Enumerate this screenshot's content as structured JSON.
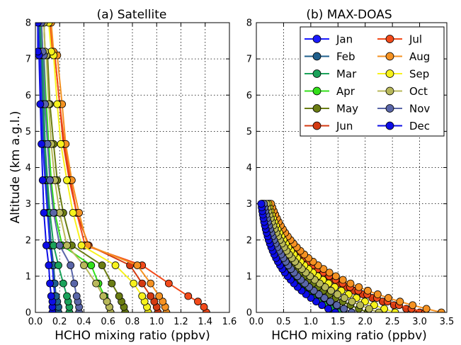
{
  "months": [
    {
      "name": "Jan",
      "color": "#1a1aff"
    },
    {
      "name": "Feb",
      "color": "#1f5f8c"
    },
    {
      "name": "Mar",
      "color": "#1aa35a"
    },
    {
      "name": "Apr",
      "color": "#33e01a"
    },
    {
      "name": "May",
      "color": "#6b7d13"
    },
    {
      "name": "Jun",
      "color": "#d43a12"
    },
    {
      "name": "Jul",
      "color": "#f24a1a"
    },
    {
      "name": "Aug",
      "color": "#f59222"
    },
    {
      "name": "Sep",
      "color": "#f7f21c"
    },
    {
      "name": "Oct",
      "color": "#b8b85a"
    },
    {
      "name": "Nov",
      "color": "#5a66a8"
    },
    {
      "name": "Dec",
      "color": "#0d0de6"
    }
  ],
  "chart_data": [
    {
      "type": "line",
      "title": "(a) Satellite",
      "xlabel": "HCHO mixing ratio (ppbv)",
      "ylabel": "Altitude (km a.g.l.)",
      "xlim": [
        0,
        1.6
      ],
      "ylim": [
        0,
        8
      ],
      "xticks": [
        "0.0",
        "0.2",
        "0.4",
        "0.6",
        "0.8",
        "1.0",
        "1.2",
        "1.4",
        "1.6"
      ],
      "yticks": [
        "0",
        "1",
        "2",
        "3",
        "4",
        "5",
        "6",
        "7",
        "8"
      ],
      "grid": true,
      "series": [
        {
          "name": "Jan",
          "x": [
            0.17,
            0.17,
            0.16,
            0.16,
            0.15,
            0.14,
            0.12,
            0.1,
            0.08,
            0.06,
            0.05,
            0.04,
            0.03,
            0.02
          ],
          "y": [
            0,
            0.15,
            0.3,
            0.45,
            0.8,
            1.3,
            1.85,
            2.75,
            3.65,
            4.65,
            5.75,
            7.1,
            7.2,
            8
          ]
        },
        {
          "name": "Feb",
          "x": [
            0.19,
            0.19,
            0.18,
            0.17,
            0.16,
            0.15,
            0.13,
            0.11,
            0.09,
            0.07,
            0.06,
            0.05,
            0.04,
            0.03
          ],
          "y": [
            0,
            0.15,
            0.3,
            0.45,
            0.8,
            1.3,
            1.85,
            2.75,
            3.65,
            4.65,
            5.75,
            7.1,
            7.2,
            8
          ]
        },
        {
          "name": "Mar",
          "x": [
            0.28,
            0.28,
            0.27,
            0.26,
            0.23,
            0.19,
            0.15,
            0.12,
            0.1,
            0.08,
            0.07,
            0.06,
            0.05,
            0.04
          ],
          "y": [
            0,
            0.15,
            0.3,
            0.45,
            0.8,
            1.3,
            1.85,
            2.75,
            3.65,
            4.65,
            5.75,
            7.1,
            7.2,
            8
          ]
        },
        {
          "name": "Apr",
          "x": [
            0.62,
            0.61,
            0.59,
            0.57,
            0.52,
            0.46,
            0.22,
            0.16,
            0.13,
            0.11,
            0.09,
            0.07,
            0.06,
            0.05
          ],
          "y": [
            0,
            0.15,
            0.3,
            0.45,
            0.8,
            1.3,
            1.85,
            2.75,
            3.65,
            4.65,
            5.75,
            7.1,
            7.2,
            8
          ]
        },
        {
          "name": "May",
          "x": [
            0.74,
            0.73,
            0.71,
            0.69,
            0.63,
            0.55,
            0.3,
            0.23,
            0.18,
            0.15,
            0.12,
            0.1,
            0.08,
            0.07
          ],
          "y": [
            0,
            0.15,
            0.3,
            0.45,
            0.8,
            1.3,
            1.85,
            2.75,
            3.65,
            4.65,
            5.75,
            7.1,
            7.2,
            8
          ]
        },
        {
          "name": "Jun",
          "x": [
            1.01,
            1.0,
            0.98,
            0.95,
            0.88,
            0.78,
            0.44,
            0.34,
            0.28,
            0.23,
            0.2,
            0.16,
            0.14,
            0.12
          ],
          "y": [
            0,
            0.15,
            0.3,
            0.45,
            0.8,
            1.3,
            1.85,
            2.75,
            3.65,
            4.65,
            5.75,
            7.1,
            7.2,
            8
          ]
        },
        {
          "name": "Jul",
          "x": [
            1.41,
            1.39,
            1.34,
            1.26,
            1.1,
            0.88,
            0.41,
            0.34,
            0.29,
            0.24,
            0.2,
            0.16,
            0.14,
            0.12
          ],
          "y": [
            0,
            0.15,
            0.3,
            0.45,
            0.8,
            1.3,
            1.85,
            2.75,
            3.65,
            4.65,
            5.75,
            7.1,
            7.2,
            8
          ]
        },
        {
          "name": "Aug",
          "x": [
            1.08,
            1.07,
            1.05,
            1.02,
            0.95,
            0.84,
            0.43,
            0.36,
            0.3,
            0.25,
            0.22,
            0.18,
            0.15,
            0.13
          ],
          "y": [
            0,
            0.15,
            0.3,
            0.45,
            0.8,
            1.3,
            1.85,
            2.75,
            3.65,
            4.65,
            5.75,
            7.1,
            7.2,
            8
          ]
        },
        {
          "name": "Sep",
          "x": [
            0.93,
            0.92,
            0.9,
            0.88,
            0.81,
            0.66,
            0.38,
            0.31,
            0.26,
            0.21,
            0.18,
            0.15,
            0.13,
            0.11
          ],
          "y": [
            0,
            0.15,
            0.3,
            0.45,
            0.8,
            1.3,
            1.85,
            2.75,
            3.65,
            4.65,
            5.75,
            7.1,
            7.2,
            8
          ]
        },
        {
          "name": "Oct",
          "x": [
            0.62,
            0.61,
            0.59,
            0.56,
            0.5,
            0.4,
            0.26,
            0.2,
            0.16,
            0.13,
            0.11,
            0.09,
            0.08,
            0.07
          ],
          "y": [
            0,
            0.15,
            0.3,
            0.45,
            0.8,
            1.3,
            1.85,
            2.75,
            3.65,
            4.65,
            5.75,
            7.1,
            7.2,
            8
          ]
        },
        {
          "name": "Nov",
          "x": [
            0.36,
            0.36,
            0.35,
            0.34,
            0.32,
            0.29,
            0.2,
            0.15,
            0.12,
            0.1,
            0.08,
            0.07,
            0.06,
            0.05
          ],
          "y": [
            0,
            0.15,
            0.3,
            0.45,
            0.8,
            1.3,
            1.85,
            2.75,
            3.65,
            4.65,
            5.75,
            7.1,
            7.2,
            8
          ]
        },
        {
          "name": "Dec",
          "x": [
            0.14,
            0.14,
            0.14,
            0.13,
            0.12,
            0.11,
            0.09,
            0.07,
            0.06,
            0.05,
            0.04,
            0.03,
            0.02,
            0.02
          ],
          "y": [
            0,
            0.15,
            0.3,
            0.45,
            0.8,
            1.3,
            1.85,
            2.75,
            3.65,
            4.65,
            5.75,
            7.1,
            7.2,
            8
          ]
        }
      ]
    },
    {
      "type": "line",
      "title": "(b) MAX-DOAS",
      "xlabel": "HCHO mixing ratio (ppbv)",
      "ylabel": "",
      "xlim": [
        0,
        3.5
      ],
      "ylim": [
        0,
        8
      ],
      "xticks": [
        "0.0",
        "0.5",
        "1.0",
        "1.5",
        "2.0",
        "2.5",
        "3.0",
        "3.5"
      ],
      "yticks": [
        "0",
        "1",
        "2",
        "3",
        "4",
        "5",
        "6",
        "7",
        "8"
      ],
      "grid": true,
      "legend": "top-right",
      "series": [
        {
          "name": "Jan",
          "x0": 1.55,
          "x3": 0.1
        },
        {
          "name": "Feb",
          "x0": 1.6,
          "x3": 0.11
        },
        {
          "name": "Mar",
          "x0": 1.52,
          "x3": 0.11
        },
        {
          "name": "Apr",
          "x0": 1.75,
          "x3": 0.13
        },
        {
          "name": "May",
          "x0": 2.05,
          "x3": 0.16
        },
        {
          "name": "Jun",
          "x0": 3.0,
          "x3": 0.23
        },
        {
          "name": "Jul",
          "x0": 3.1,
          "x3": 0.25
        },
        {
          "name": "Aug",
          "x0": 3.4,
          "x3": 0.27
        },
        {
          "name": "Sep",
          "x0": 2.55,
          "x3": 0.22
        },
        {
          "name": "Oct",
          "x0": 2.25,
          "x3": 0.19
        },
        {
          "name": "Nov",
          "x0": 1.75,
          "x3": 0.14
        },
        {
          "name": "Dec",
          "x0": 1.45,
          "x3": 0.09
        }
      ]
    }
  ]
}
